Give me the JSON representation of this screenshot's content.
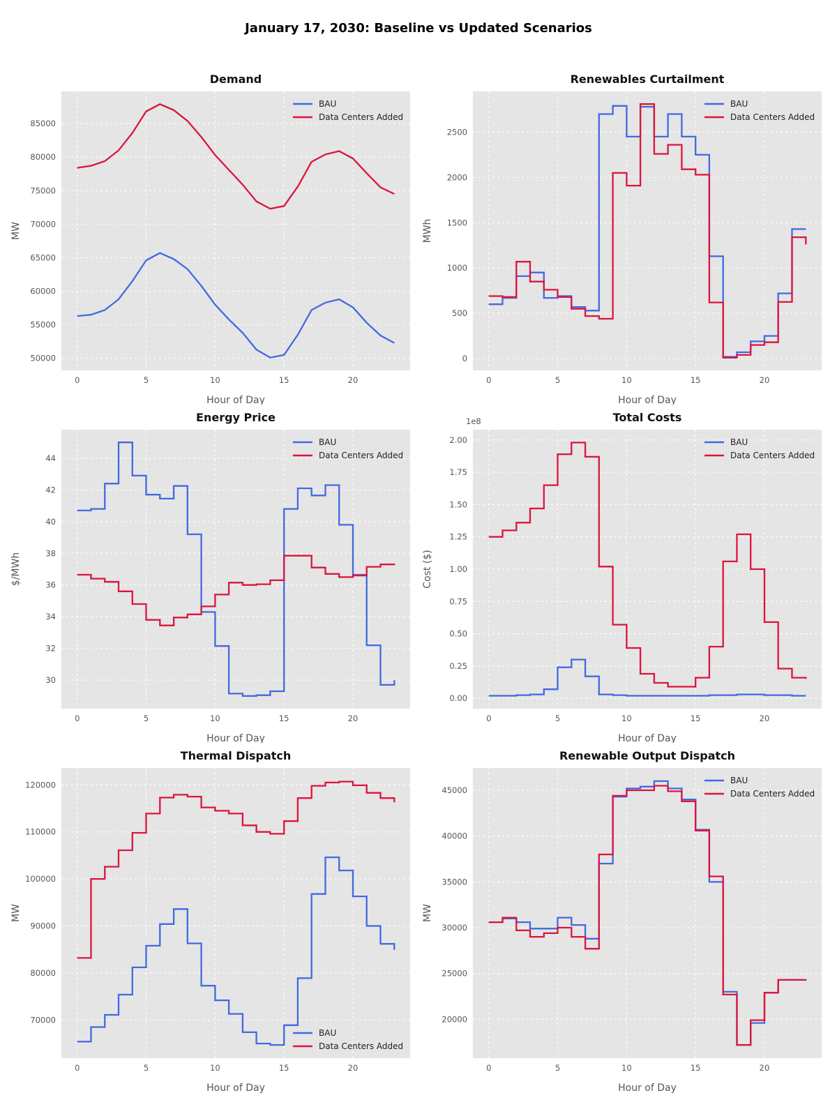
{
  "title": "January 17, 2030: Baseline vs Updated Scenarios",
  "colors": {
    "bau": "#4169E1",
    "dca": "#DC143C",
    "plot_bg": "#e5e5e5",
    "grid": "#ffffff",
    "tick": "#555555",
    "text": "#111111"
  },
  "legend_labels": [
    "BAU",
    "Data Centers Added"
  ],
  "xlabel": "Hour of Day",
  "xticks": {
    "values": [
      0,
      5,
      10,
      15,
      20
    ],
    "labels": [
      "0",
      "5",
      "10",
      "15",
      "20"
    ]
  },
  "xlim": [
    -1.15,
    24.15
  ],
  "chart_data": [
    {
      "id": "demand",
      "type": "line",
      "title": "Demand",
      "ylabel": "MW",
      "legend_pos": "top-right",
      "ylim": [
        48200,
        89800
      ],
      "yticks": {
        "values": [
          50000,
          55000,
          60000,
          65000,
          70000,
          75000,
          80000,
          85000
        ],
        "labels": [
          "50000",
          "55000",
          "60000",
          "65000",
          "70000",
          "75000",
          "80000",
          "85000"
        ]
      },
      "x": [
        0,
        1,
        2,
        3,
        4,
        5,
        6,
        7,
        8,
        9,
        10,
        11,
        12,
        13,
        14,
        15,
        16,
        17,
        18,
        19,
        20,
        21,
        22,
        23
      ],
      "series": [
        {
          "name": "BAU",
          "key": "bau",
          "values": [
            56300,
            56500,
            57200,
            58800,
            61500,
            64600,
            65700,
            64800,
            63300,
            60800,
            58000,
            55800,
            53800,
            51300,
            50100,
            50500,
            53500,
            57200,
            58300,
            58800,
            57600,
            55300,
            53400,
            52300
          ]
        },
        {
          "name": "Data Centers Added",
          "key": "dca",
          "values": [
            78400,
            78700,
            79400,
            81000,
            83600,
            86800,
            87900,
            87000,
            85400,
            83000,
            80300,
            78100,
            75900,
            73400,
            72300,
            72700,
            75600,
            79300,
            80400,
            80900,
            79800,
            77600,
            75500,
            74500
          ]
        }
      ]
    },
    {
      "id": "curtailment",
      "type": "step",
      "title": "Renewables Curtailment",
      "ylabel": "MWh",
      "legend_pos": "top-right",
      "ylim": [
        -130,
        2950
      ],
      "yticks": {
        "values": [
          0,
          500,
          1000,
          1500,
          2000,
          2500
        ],
        "labels": [
          "0",
          "500",
          "1000",
          "1500",
          "2000",
          "2500"
        ]
      },
      "x": [
        0,
        1,
        2,
        3,
        4,
        5,
        6,
        7,
        8,
        9,
        10,
        11,
        12,
        13,
        14,
        15,
        16,
        17,
        18,
        19,
        20,
        21,
        22,
        23
      ],
      "series": [
        {
          "name": "BAU",
          "key": "bau",
          "values": [
            600,
            670,
            910,
            950,
            670,
            690,
            570,
            530,
            2700,
            2790,
            2450,
            2780,
            2450,
            2700,
            2450,
            2250,
            1130,
            20,
            70,
            190,
            250,
            720,
            1430,
            1430
          ]
        },
        {
          "name": "Data Centers Added",
          "key": "dca",
          "values": [
            690,
            680,
            1070,
            850,
            760,
            680,
            550,
            470,
            440,
            2050,
            1910,
            2810,
            2260,
            2360,
            2090,
            2030,
            620,
            10,
            40,
            150,
            180,
            625,
            1340,
            1260
          ]
        }
      ]
    },
    {
      "id": "price",
      "type": "step",
      "title": "Energy Price",
      "ylabel": "$/MWh",
      "legend_pos": "top-right",
      "ylim": [
        28.2,
        45.8
      ],
      "yticks": {
        "values": [
          30,
          32,
          34,
          36,
          38,
          40,
          42,
          44
        ],
        "labels": [
          "30",
          "32",
          "34",
          "36",
          "38",
          "40",
          "42",
          "44"
        ]
      },
      "x": [
        0,
        1,
        2,
        3,
        4,
        5,
        6,
        7,
        8,
        9,
        10,
        11,
        12,
        13,
        14,
        15,
        16,
        17,
        18,
        19,
        20,
        21,
        22,
        23
      ],
      "series": [
        {
          "name": "BAU",
          "key": "bau",
          "values": [
            40.7,
            40.8,
            42.4,
            45.0,
            42.9,
            41.7,
            41.45,
            42.25,
            39.2,
            34.3,
            32.15,
            29.15,
            29.0,
            29.05,
            29.3,
            40.8,
            42.1,
            41.65,
            42.3,
            39.8,
            36.65,
            32.2,
            29.7,
            30.0
          ]
        },
        {
          "name": "Data Centers Added",
          "key": "dca",
          "values": [
            36.65,
            36.4,
            36.2,
            35.6,
            34.8,
            33.8,
            33.45,
            33.95,
            34.15,
            34.65,
            35.4,
            36.15,
            36.0,
            36.05,
            36.3,
            37.85,
            37.85,
            37.1,
            36.7,
            36.5,
            36.6,
            37.15,
            37.3,
            37.25
          ]
        }
      ]
    },
    {
      "id": "costs",
      "type": "step",
      "title": "Total Costs",
      "ylabel": "Cost ($)",
      "offset_text": "1e8",
      "legend_pos": "top-right",
      "ylim": [
        -0.08,
        2.08
      ],
      "yticks": {
        "values": [
          0,
          0.25,
          0.5,
          0.75,
          1.0,
          1.25,
          1.5,
          1.75,
          2.0
        ],
        "labels": [
          "0.00",
          "0.25",
          "0.50",
          "0.75",
          "1.00",
          "1.25",
          "1.50",
          "1.75",
          "2.00"
        ]
      },
      "x": [
        0,
        1,
        2,
        3,
        4,
        5,
        6,
        7,
        8,
        9,
        10,
        11,
        12,
        13,
        14,
        15,
        16,
        17,
        18,
        19,
        20,
        21,
        22,
        23
      ],
      "series": [
        {
          "name": "BAU",
          "key": "bau",
          "values": [
            0.02,
            0.02,
            0.025,
            0.03,
            0.07,
            0.24,
            0.3,
            0.17,
            0.03,
            0.025,
            0.02,
            0.02,
            0.02,
            0.02,
            0.02,
            0.02,
            0.025,
            0.025,
            0.03,
            0.03,
            0.025,
            0.025,
            0.02,
            0.02
          ]
        },
        {
          "name": "Data Centers Added",
          "key": "dca",
          "values": [
            1.25,
            1.3,
            1.36,
            1.47,
            1.65,
            1.89,
            1.98,
            1.87,
            1.02,
            0.57,
            0.39,
            0.19,
            0.12,
            0.09,
            0.09,
            0.16,
            0.4,
            1.06,
            1.27,
            1.0,
            0.59,
            0.23,
            0.16,
            0.15
          ]
        }
      ]
    },
    {
      "id": "thermal",
      "type": "step",
      "title": "Thermal Dispatch",
      "ylabel": "MW",
      "legend_pos": "bottom-right",
      "ylim": [
        61900,
        123600
      ],
      "yticks": {
        "values": [
          70000,
          80000,
          90000,
          100000,
          110000,
          120000
        ],
        "labels": [
          "70000",
          "80000",
          "90000",
          "100000",
          "110000",
          "120000"
        ]
      },
      "x": [
        0,
        1,
        2,
        3,
        4,
        5,
        6,
        7,
        8,
        9,
        10,
        11,
        12,
        13,
        14,
        15,
        16,
        17,
        18,
        19,
        20,
        21,
        22,
        23
      ],
      "series": [
        {
          "name": "BAU",
          "key": "bau",
          "values": [
            65400,
            68500,
            71100,
            75400,
            81200,
            85800,
            90400,
            93600,
            86300,
            77300,
            74200,
            71300,
            67400,
            65000,
            64700,
            68900,
            78900,
            96800,
            104600,
            101800,
            96300,
            90000,
            86200,
            84900
          ]
        },
        {
          "name": "Data Centers Added",
          "key": "dca",
          "values": [
            83200,
            100000,
            102600,
            106100,
            109800,
            113900,
            117300,
            117900,
            117500,
            115200,
            114500,
            113900,
            111400,
            110000,
            109600,
            112300,
            117200,
            119800,
            120500,
            120700,
            119900,
            118300,
            117200,
            116300
          ]
        }
      ]
    },
    {
      "id": "renewables",
      "type": "step",
      "title": "Renewable Output Dispatch",
      "ylabel": "MW",
      "legend_pos": "top-right",
      "ylim": [
        15760,
        47440
      ],
      "yticks": {
        "values": [
          20000,
          25000,
          30000,
          35000,
          40000,
          45000
        ],
        "labels": [
          "20000",
          "25000",
          "30000",
          "35000",
          "40000",
          "45000"
        ]
      },
      "x": [
        0,
        1,
        2,
        3,
        4,
        5,
        6,
        7,
        8,
        9,
        10,
        11,
        12,
        13,
        14,
        15,
        16,
        17,
        18,
        19,
        20,
        21,
        22,
        23
      ],
      "series": [
        {
          "name": "BAU",
          "key": "bau",
          "values": [
            30600,
            31000,
            30600,
            29900,
            29900,
            31100,
            30300,
            28800,
            37000,
            44300,
            45200,
            45400,
            46000,
            45200,
            44000,
            40700,
            35000,
            23000,
            17200,
            19600,
            22900,
            24300,
            24300,
            24200
          ]
        },
        {
          "name": "Data Centers Added",
          "key": "dca",
          "values": [
            30600,
            31100,
            29700,
            29000,
            29400,
            30000,
            29000,
            27700,
            38000,
            44400,
            45000,
            45000,
            45500,
            44900,
            43800,
            40600,
            35600,
            22700,
            17200,
            19900,
            22900,
            24300,
            24300,
            24300
          ]
        }
      ]
    }
  ]
}
